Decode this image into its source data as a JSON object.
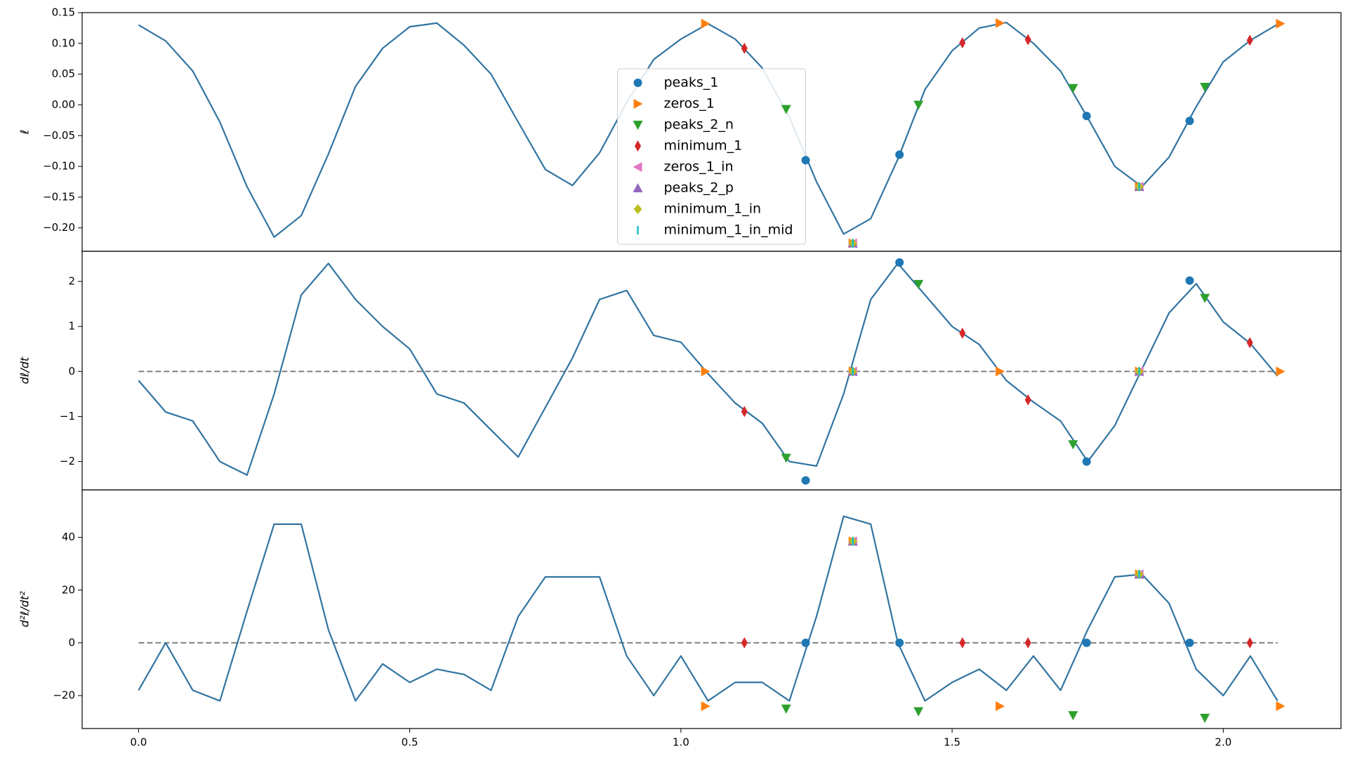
{
  "chart_data": [
    {
      "type": "line",
      "ylabel": "ℓ",
      "xlim": [
        -0.104,
        2.217
      ],
      "ylim": [
        -0.238,
        0.15
      ],
      "yticks": [
        0.15,
        {
          "value": 0.1,
          "label": "0.10"
        },
        0.05,
        {
          "value": 0,
          "label": "0.00"
        },
        {
          "value": -0.05,
          "label": "−0.05"
        },
        {
          "value": -0.1,
          "label": "−0.10"
        },
        {
          "value": -0.15,
          "label": "−0.15"
        },
        {
          "value": -0.2,
          "label": "−0.20"
        }
      ],
      "legend": "lower center",
      "x": [
        0,
        0.05,
        0.1,
        0.15,
        0.2,
        0.25,
        0.3,
        0.35,
        0.4,
        0.45,
        0.5,
        0.55,
        0.6,
        0.65,
        0.7,
        0.75,
        0.8,
        0.85,
        0.9,
        0.95,
        1.0,
        1.05,
        1.1,
        1.15,
        1.2,
        1.25,
        1.3,
        1.35,
        1.4,
        1.45,
        1.5,
        1.55,
        1.6,
        1.65,
        1.7,
        1.75,
        1.8,
        1.85,
        1.9,
        1.95,
        2.0,
        2.05,
        2.1
      ],
      "series": [
        {
          "color": "#3274a1",
          "values": [
            0.13,
            0.104,
            0.055,
            -0.028,
            -0.133,
            -0.215,
            -0.18,
            -0.08,
            0.03,
            0.092,
            0.127,
            0.133,
            0.097,
            0.05,
            -0.028,
            -0.105,
            -0.131,
            -0.078,
            0.004,
            0.074,
            0.107,
            0.132,
            0.107,
            0.06,
            -0.02,
            -0.125,
            -0.21,
            -0.185,
            -0.088,
            0.025,
            0.088,
            0.125,
            0.134,
            0.1,
            0.055,
            -0.021,
            -0.1,
            -0.133,
            -0.085,
            -0.003,
            0.07,
            0.105,
            0.131
          ]
        },
        {
          "name": "peaks_1",
          "marker": "circle",
          "color": "#1f77b4",
          "x": [
            1.23,
            1.403,
            1.748,
            1.938
          ],
          "values": [
            -0.09,
            -0.081,
            -0.018,
            -0.026
          ]
        },
        {
          "name": "zeros_1",
          "marker": "tri-right",
          "color": "#ff7f0e",
          "x": [
            1.045,
            1.317,
            1.588,
            1.845,
            2.105
          ],
          "values": [
            0.132,
            -0.225,
            0.133,
            -0.133,
            0.132
          ]
        },
        {
          "name": "peaks_2_n",
          "marker": "tri-down",
          "color": "#2ca02c",
          "x": [
            1.194,
            1.438,
            1.723,
            1.966
          ],
          "values": [
            -0.007,
            0.0,
            0.027,
            0.029
          ]
        },
        {
          "name": "minimum_1",
          "marker": "thin-diamond",
          "color": "#d62728",
          "x": [
            1.117,
            1.519,
            1.64,
            2.049
          ],
          "values": [
            0.092,
            0.101,
            0.106,
            0.105
          ]
        },
        {
          "name": "zeros_1_in",
          "marker": "tri-left",
          "color": "#e377c2",
          "x": [
            1.317,
            1.845
          ],
          "values": [
            -0.225,
            -0.133
          ]
        },
        {
          "name": "peaks_2_p",
          "marker": "tri-up",
          "color": "#9467bd",
          "x": [
            1.317,
            1.845
          ],
          "values": [
            -0.225,
            -0.133
          ]
        },
        {
          "name": "minimum_1_in",
          "marker": "diamond",
          "color": "#bcbd22",
          "x": [
            1.317,
            1.845
          ],
          "values": [
            -0.225,
            -0.133
          ]
        },
        {
          "name": "minimum_1_in_mid",
          "marker": "vline",
          "color": "#17becf",
          "x": [
            1.317,
            1.845
          ],
          "values": [
            -0.225,
            -0.133
          ]
        }
      ]
    },
    {
      "type": "line",
      "ylabel": "dℓ/dt",
      "xlim": [
        -0.104,
        2.217
      ],
      "ylim": [
        -2.63,
        2.67
      ],
      "hline": 0,
      "yticks": [
        {
          "value": -2,
          "label": "−2"
        },
        {
          "value": -1,
          "label": "−1"
        },
        0,
        1,
        2
      ],
      "x": [
        0,
        0.05,
        0.1,
        0.15,
        0.2,
        0.25,
        0.3,
        0.35,
        0.4,
        0.45,
        0.5,
        0.55,
        0.6,
        0.65,
        0.7,
        0.75,
        0.8,
        0.85,
        0.9,
        0.95,
        1.0,
        1.05,
        1.1,
        1.15,
        1.2,
        1.25,
        1.3,
        1.35,
        1.4,
        1.45,
        1.5,
        1.55,
        1.6,
        1.65,
        1.7,
        1.75,
        1.8,
        1.85,
        1.9,
        1.95,
        2.0,
        2.05,
        2.1
      ],
      "series": [
        {
          "color": "#3274a1",
          "values": [
            -0.2,
            -0.9,
            -1.1,
            -2.0,
            -2.3,
            -0.5,
            1.7,
            2.4,
            1.6,
            1.0,
            0.5,
            -0.5,
            -0.7,
            -1.3,
            -1.9,
            -0.8,
            0.3,
            1.6,
            1.8,
            0.8,
            0.65,
            -0.05,
            -0.7,
            -1.15,
            -2.0,
            -2.1,
            -0.5,
            1.6,
            2.4,
            1.7,
            1.0,
            0.6,
            -0.2,
            -0.68,
            -1.1,
            -2.0,
            -1.2,
            0.05,
            1.3,
            1.95,
            1.1,
            0.62,
            -0.1
          ]
        },
        {
          "marker": "circle",
          "color": "#1f77b4",
          "x": [
            1.23,
            1.403,
            1.748,
            1.938
          ],
          "values": [
            -2.42,
            2.42,
            -2.0,
            2.02
          ]
        },
        {
          "marker": "tri-right",
          "color": "#ff7f0e",
          "x": [
            1.045,
            1.317,
            1.588,
            1.845,
            2.105
          ],
          "values": [
            0,
            0,
            0,
            0,
            0
          ]
        },
        {
          "marker": "tri-down",
          "color": "#2ca02c",
          "x": [
            1.194,
            1.438,
            1.723,
            1.966
          ],
          "values": [
            -1.92,
            1.94,
            -1.62,
            1.63
          ]
        },
        {
          "marker": "thin-diamond",
          "color": "#d62728",
          "x": [
            1.117,
            1.519,
            1.64,
            2.049
          ],
          "values": [
            -0.89,
            0.85,
            -0.63,
            0.64
          ]
        },
        {
          "marker": "tri-left",
          "color": "#e377c2",
          "x": [
            1.317,
            1.845
          ],
          "values": [
            0,
            0
          ]
        },
        {
          "marker": "tri-up",
          "color": "#9467bd",
          "x": [
            1.317,
            1.845
          ],
          "values": [
            0,
            0
          ]
        },
        {
          "marker": "diamond",
          "color": "#bcbd22",
          "x": [
            1.317,
            1.845
          ],
          "values": [
            0,
            0
          ]
        },
        {
          "marker": "vline",
          "color": "#17becf",
          "x": [
            1.317,
            1.845
          ],
          "values": [
            0,
            0
          ]
        }
      ]
    },
    {
      "type": "line",
      "ylabel": "d²ℓ/dt²",
      "xlim": [
        -0.104,
        2.217
      ],
      "ylim": [
        -32.5,
        58
      ],
      "hline": 0,
      "yticks": [
        {
          "value": -20,
          "label": "−20"
        },
        0,
        20,
        40
      ],
      "xticks": [
        {
          "value": 0,
          "label": "0.0"
        },
        0.5,
        {
          "value": 1,
          "label": "1.0"
        },
        1.5,
        {
          "value": 2,
          "label": "2.0"
        }
      ],
      "x": [
        0,
        0.05,
        0.1,
        0.15,
        0.2,
        0.25,
        0.3,
        0.35,
        0.4,
        0.45,
        0.5,
        0.55,
        0.6,
        0.65,
        0.7,
        0.75,
        0.8,
        0.85,
        0.9,
        0.95,
        1.0,
        1.05,
        1.1,
        1.15,
        1.2,
        1.25,
        1.3,
        1.35,
        1.4,
        1.45,
        1.5,
        1.55,
        1.6,
        1.65,
        1.7,
        1.75,
        1.8,
        1.85,
        1.9,
        1.95,
        2.0,
        2.05,
        2.1
      ],
      "series": [
        {
          "color": "#3274a1",
          "values": [
            -18,
            0,
            -18,
            -22,
            12,
            45,
            45,
            5,
            -22,
            -8,
            -15,
            -10,
            -12,
            -18,
            10,
            25,
            25,
            25,
            -5,
            -20,
            -5,
            -22,
            -15,
            -15,
            -22,
            10,
            48,
            45,
            0,
            -22,
            -15,
            -10,
            -18,
            -5,
            -18,
            5,
            25,
            26,
            15,
            -10,
            -20,
            -5,
            -22
          ]
        },
        {
          "marker": "circle",
          "color": "#1f77b4",
          "x": [
            1.23,
            1.403,
            1.748,
            1.938
          ],
          "values": [
            0,
            0,
            0,
            0
          ]
        },
        {
          "marker": "tri-right",
          "color": "#ff7f0e",
          "x": [
            1.045,
            1.317,
            1.588,
            1.845,
            2.105
          ],
          "values": [
            -24,
            38.5,
            -24,
            26,
            -24
          ]
        },
        {
          "marker": "tri-down",
          "color": "#2ca02c",
          "x": [
            1.194,
            1.438,
            1.723,
            1.966
          ],
          "values": [
            -25,
            -26,
            -27.5,
            -28.5
          ]
        },
        {
          "marker": "thin-diamond",
          "color": "#d62728",
          "x": [
            1.117,
            1.519,
            1.64,
            2.049
          ],
          "values": [
            0,
            0,
            0,
            0
          ]
        },
        {
          "marker": "tri-left",
          "color": "#e377c2",
          "x": [
            1.317,
            1.845
          ],
          "values": [
            38.5,
            26
          ]
        },
        {
          "marker": "tri-up",
          "color": "#9467bd",
          "x": [
            1.317,
            1.845
          ],
          "values": [
            38.5,
            26
          ]
        },
        {
          "marker": "diamond",
          "color": "#bcbd22",
          "x": [
            1.317,
            1.845
          ],
          "values": [
            38.5,
            26
          ]
        },
        {
          "marker": "vline",
          "color": "#17becf",
          "x": [
            1.317,
            1.845
          ],
          "values": [
            38.5,
            26
          ]
        }
      ]
    }
  ]
}
